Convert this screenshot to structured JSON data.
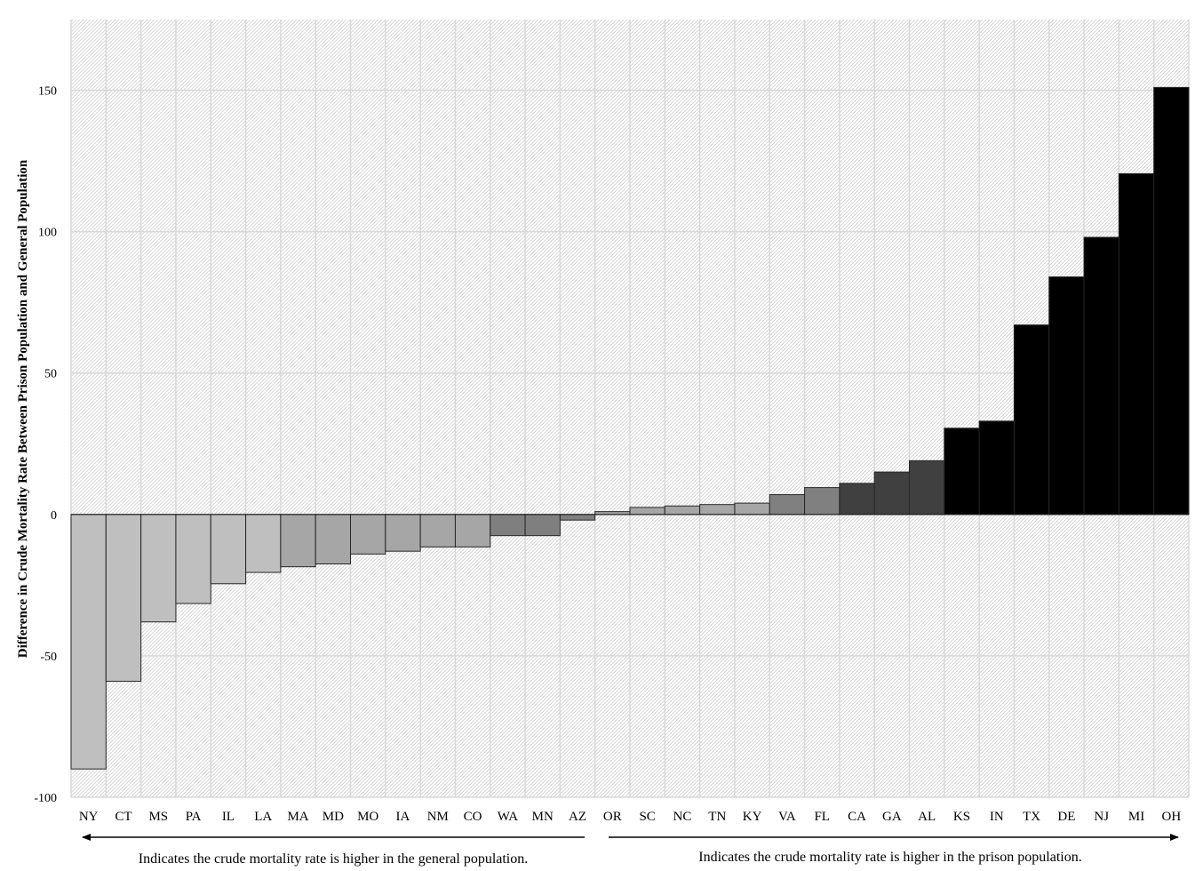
{
  "chart_data": {
    "type": "bar",
    "ylabel": "Difference in Crude Mortality Rate Between Prison Population and General Population",
    "xlabel": "",
    "ylim": [
      -100,
      175
    ],
    "yticks": [
      150,
      100,
      50,
      0,
      -50,
      -100
    ],
    "grid": true,
    "categories": [
      "NY",
      "CT",
      "MS",
      "PA",
      "IL",
      "LA",
      "MA",
      "MD",
      "MO",
      "IA",
      "NM",
      "CO",
      "WA",
      "MN",
      "AZ",
      "OR",
      "SC",
      "NC",
      "TN",
      "KY",
      "VA",
      "FL",
      "CA",
      "GA",
      "AL",
      "KS",
      "IN",
      "TX",
      "DE",
      "NJ",
      "MI",
      "OH"
    ],
    "values": [
      -90,
      -59,
      -38,
      -31.5,
      -24.5,
      -20.5,
      -18.5,
      -17.5,
      -14,
      -13,
      -11.5,
      -11.5,
      -7.5,
      -7.5,
      -2,
      1,
      2.5,
      3,
      3.5,
      4,
      7,
      9.5,
      11,
      15,
      19,
      30.5,
      33,
      67,
      84,
      98,
      120.5,
      151
    ],
    "bar_colors": [
      "#bfbfbf",
      "#bfbfbf",
      "#bfbfbf",
      "#bfbfbf",
      "#bfbfbf",
      "#bfbfbf",
      "#a6a6a6",
      "#a6a6a6",
      "#a6a6a6",
      "#a6a6a6",
      "#a6a6a6",
      "#a6a6a6",
      "#7f7f7f",
      "#7f7f7f",
      "#7f7f7f",
      "#a6a6a6",
      "#a6a6a6",
      "#a6a6a6",
      "#a6a6a6",
      "#a6a6a6",
      "#808080",
      "#808080",
      "#404040",
      "#404040",
      "#404040",
      "#000000",
      "#000000",
      "#000000",
      "#000000",
      "#000000",
      "#000000",
      "#000000"
    ],
    "annotations": {
      "left": "Indicates the crude mortality rate is higher in the general population.",
      "right": "Indicates the crude mortality rate is higher in the prison population."
    }
  },
  "colors": {
    "grid": "#d9d9d9",
    "bar_stroke": "#262626",
    "text": "#000000"
  }
}
